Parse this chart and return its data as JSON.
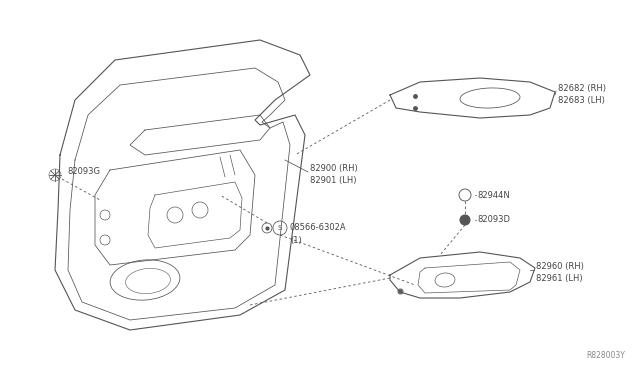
{
  "bg_color": "#ffffff",
  "c": "#555555",
  "lc": "#444444",
  "watermark": "R828003Y",
  "label_texts": {
    "82093G": "82093G",
    "82900_RH": "82900 (RH)",
    "82901_LH": "82901 (LH)",
    "08566": "08566-6302A",
    "08566_1": "(1)",
    "82682_RH": "82682 (RH)",
    "82683_LH": "82683 (LH)",
    "82944N": "82944N",
    "82093D": "82093D",
    "82960_RH": "82960 (RH)",
    "82961_LH": "82961 (LH)"
  }
}
